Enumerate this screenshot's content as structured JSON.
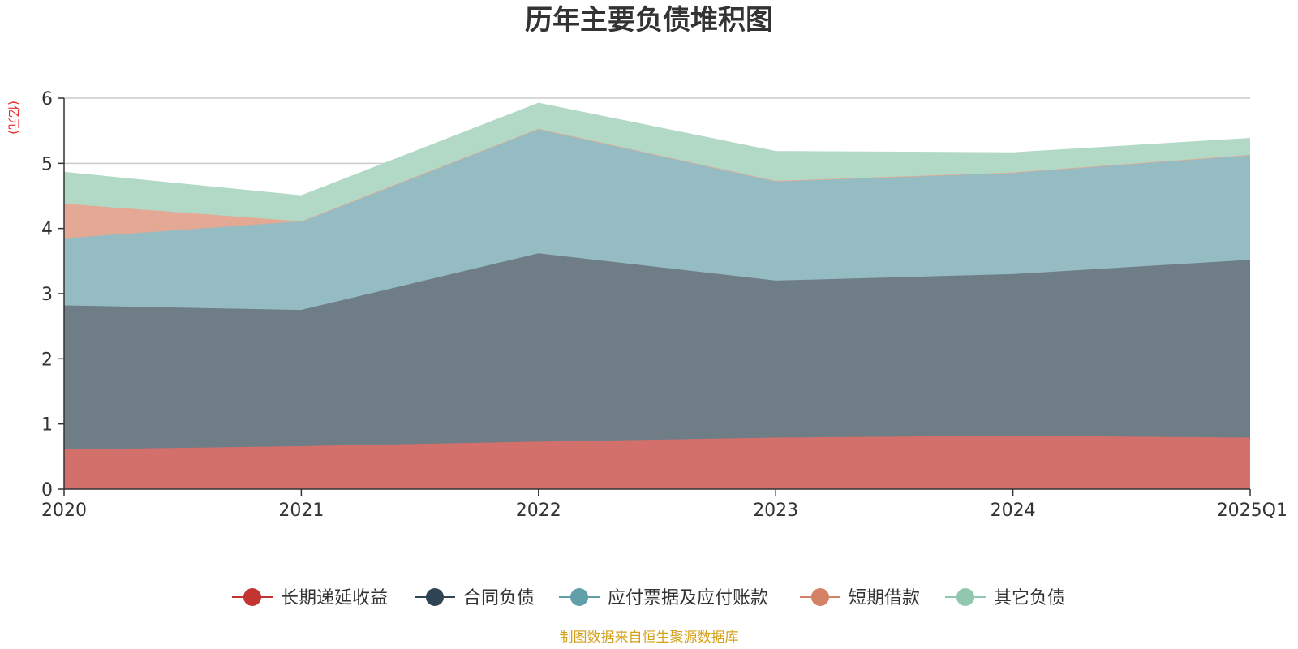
{
  "chart_data": {
    "type": "area",
    "stacked": true,
    "title": "历年主要负债堆积图",
    "unit_label": "(亿元)",
    "source_note": "制图数据来自恒生聚源数据库",
    "categories": [
      "2020",
      "2021",
      "2022",
      "2023",
      "2024",
      "2025Q1"
    ],
    "ylim": [
      0,
      6
    ],
    "yticks": [
      0,
      1,
      2,
      3,
      4,
      5,
      6
    ],
    "grid": true,
    "legend_position": "bottom",
    "series": [
      {
        "name": "长期递延收益",
        "color": "#c23531",
        "fill": "#d4706b",
        "values": [
          0.61,
          0.66,
          0.73,
          0.79,
          0.82,
          0.79
        ]
      },
      {
        "name": "合同负债",
        "color": "#2f4554",
        "fill": "#6f7d87",
        "values": [
          2.21,
          2.09,
          2.89,
          2.41,
          2.48,
          2.73
        ]
      },
      {
        "name": "应付票据及应付账款",
        "color": "#61a0a8",
        "fill": "#94bcc2",
        "values": [
          1.03,
          1.36,
          1.91,
          1.53,
          1.56,
          1.61
        ]
      },
      {
        "name": "短期借款",
        "color": "#d48265",
        "fill": "#e4a994",
        "values": [
          0.53,
          0.0,
          0.0,
          0.0,
          0.0,
          0.0
        ]
      },
      {
        "name": "其它负债",
        "color": "#91c7ae",
        "fill": "#b2d8c6",
        "values": [
          0.48,
          0.39,
          0.39,
          0.45,
          0.3,
          0.25
        ]
      }
    ]
  }
}
